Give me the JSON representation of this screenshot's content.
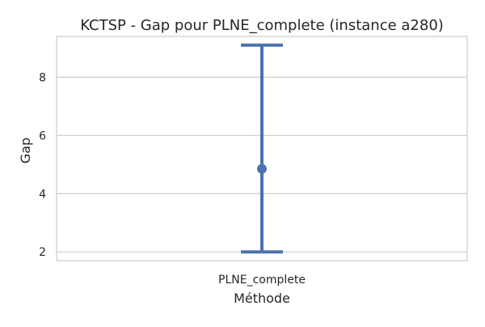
{
  "chart_data": {
    "type": "pointplot",
    "title": "KCTSP - Gap pour PLNE_complete (instance a280)",
    "xlabel": "Méthode",
    "ylabel": "Gap",
    "categories": [
      "PLNE_complete"
    ],
    "series": [
      {
        "values": [
          4.85
        ],
        "error_low": [
          2.0
        ],
        "error_high": [
          9.1
        ]
      }
    ],
    "ylim": [
      1.7,
      9.4
    ],
    "yticks": [
      2,
      4,
      6,
      8
    ],
    "ytick_labels": [
      "2",
      "4",
      "6",
      "8"
    ],
    "grid": true,
    "legend": "none",
    "colors": {
      "series": "#4c72b0",
      "grid": "#cccccc",
      "frame": "#cccccc",
      "text": "#262626"
    }
  }
}
